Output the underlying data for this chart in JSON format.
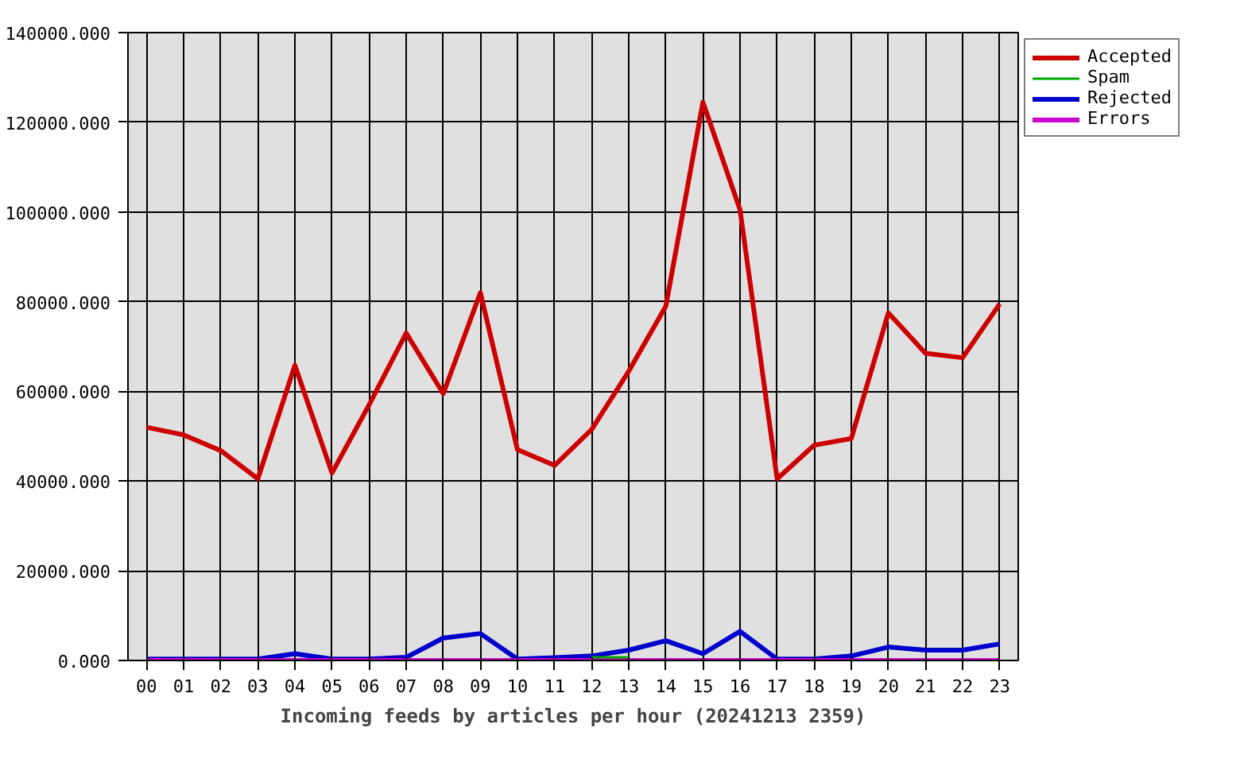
{
  "chart_data": {
    "type": "line",
    "xlabel": "Incoming feeds by articles per hour (20241213 2359)",
    "categories": [
      "00",
      "01",
      "02",
      "03",
      "04",
      "05",
      "06",
      "07",
      "08",
      "09",
      "10",
      "11",
      "12",
      "13",
      "14",
      "15",
      "16",
      "17",
      "18",
      "19",
      "20",
      "21",
      "22",
      "23"
    ],
    "series": [
      {
        "name": "Accepted",
        "color": "#cc0000",
        "values": [
          52000,
          50300,
          46800,
          40500,
          65800,
          41800,
          57000,
          73000,
          59500,
          82000,
          47000,
          43500,
          51500,
          64500,
          79000,
          124500,
          100500,
          40500,
          48000,
          49500,
          77500,
          68500,
          67500,
          79500
        ]
      },
      {
        "name": "Spam",
        "color": "#00aa00",
        "values": [
          null,
          null,
          null,
          null,
          null,
          null,
          null,
          null,
          null,
          null,
          null,
          null,
          700,
          700,
          null,
          null,
          null,
          null,
          null,
          null,
          null,
          null,
          null,
          null
        ]
      },
      {
        "name": "Rejected",
        "color": "#0000cc",
        "values": [
          300,
          300,
          300,
          300,
          1500,
          300,
          300,
          700,
          5000,
          6000,
          300,
          600,
          1000,
          2300,
          4400,
          1500,
          6500,
          300,
          300,
          1000,
          3000,
          2300,
          2300,
          3700
        ]
      },
      {
        "name": "Errors",
        "color": "#cc00cc",
        "values": [
          0,
          0,
          0,
          0,
          0,
          0,
          0,
          0,
          0,
          0,
          0,
          0,
          0,
          0,
          0,
          0,
          0,
          0,
          0,
          0,
          0,
          0,
          0,
          0
        ]
      }
    ],
    "ylim": [
      0,
      140000
    ],
    "yticks": [
      {
        "value": 0,
        "label": "0.000"
      },
      {
        "value": 20000,
        "label": "20000.000"
      },
      {
        "value": 40000,
        "label": "40000.000"
      },
      {
        "value": 60000,
        "label": "60000.000"
      },
      {
        "value": 80000,
        "label": "80000.000"
      },
      {
        "value": 100000,
        "label": "100000.000"
      },
      {
        "value": 120000,
        "label": "120000.000"
      },
      {
        "value": 140000,
        "label": "140000.000"
      }
    ],
    "grid": true,
    "legend": "top right"
  }
}
